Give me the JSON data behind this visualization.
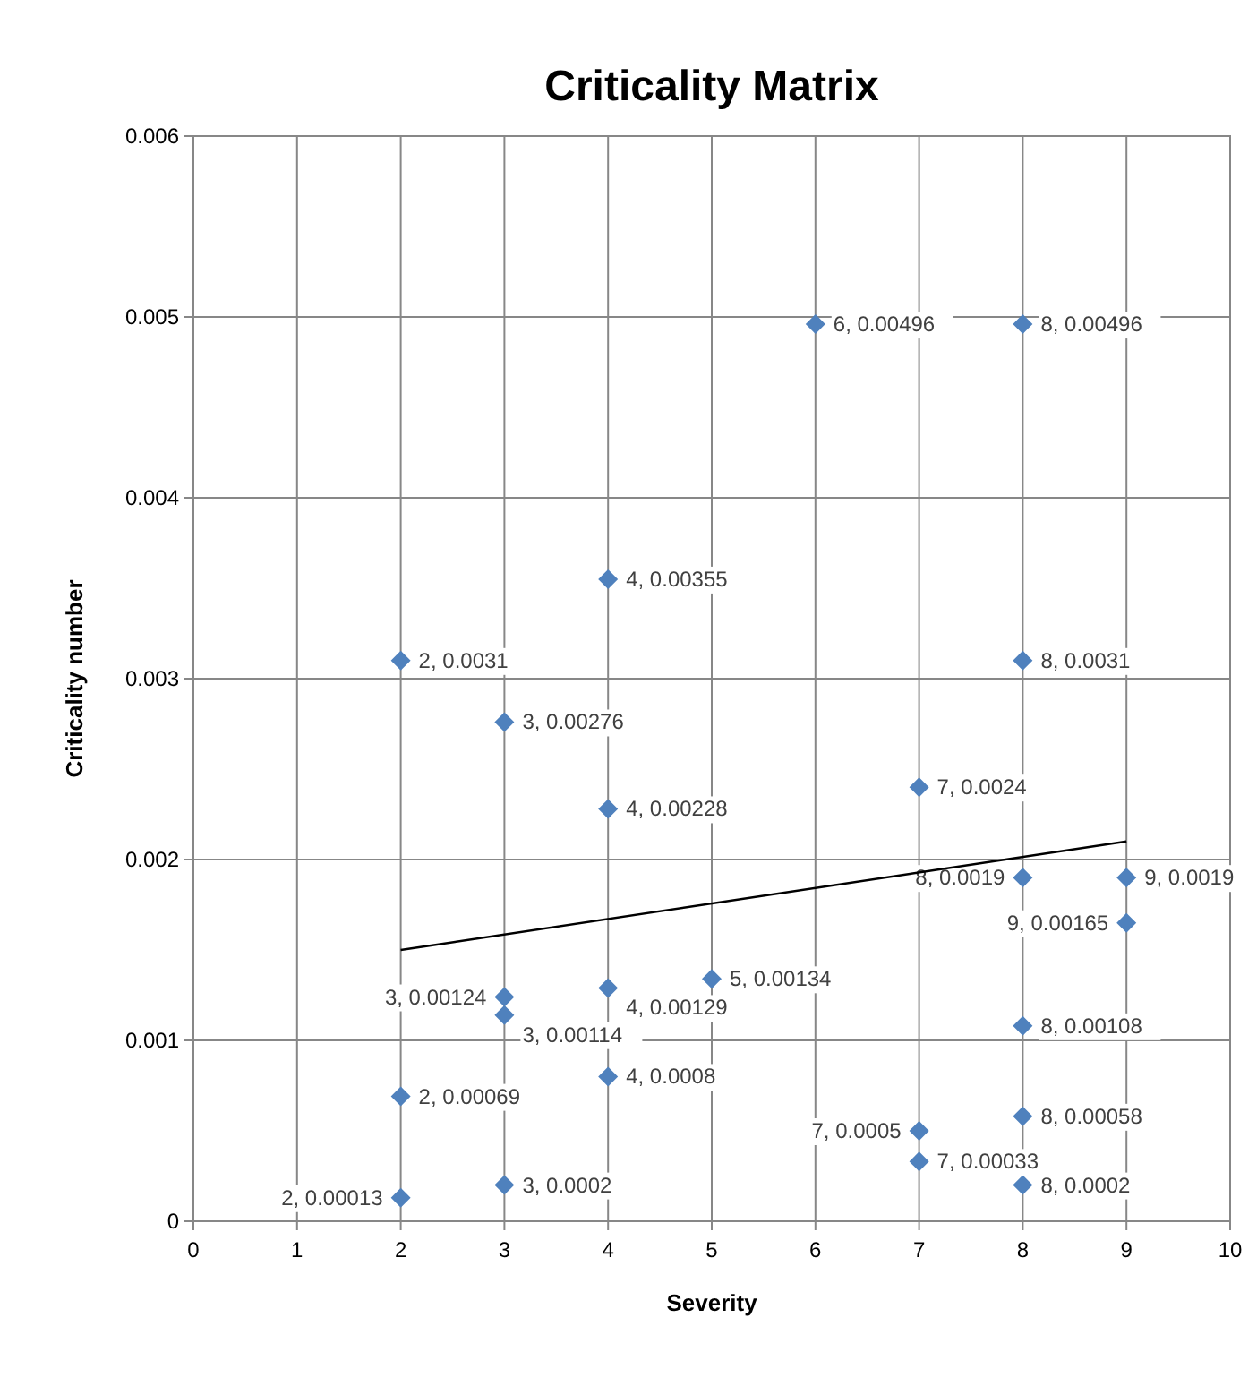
{
  "chart_data": {
    "type": "scatter",
    "title": "Criticality Matrix",
    "xlabel": "Severity",
    "ylabel": "Criticality number",
    "xlim": [
      0,
      10
    ],
    "xticks": [
      0,
      1,
      2,
      3,
      4,
      5,
      6,
      7,
      8,
      9,
      10
    ],
    "ylim": [
      0,
      0.006
    ],
    "yticks": [
      0,
      0.001,
      0.002,
      0.003,
      0.004,
      0.005,
      0.006
    ],
    "grid": true,
    "marker": "diamond",
    "series": [
      {
        "color": "#4f81bd",
        "x": [
          6,
          8,
          4,
          2,
          8,
          3,
          4,
          7,
          8,
          9,
          9,
          5,
          4,
          3,
          3,
          8,
          4,
          2,
          8,
          7,
          7,
          8,
          3,
          2
        ],
        "values": [
          0.00496,
          0.00496,
          0.00355,
          0.0031,
          0.0031,
          0.00276,
          0.00228,
          0.0024,
          0.0019,
          0.0019,
          0.00165,
          0.00134,
          0.00129,
          0.00124,
          0.00114,
          0.00108,
          0.0008,
          0.00069,
          0.00058,
          0.0005,
          0.00033,
          0.0002,
          0.0002,
          0.00013
        ],
        "value_labels": [
          "6, 0.00496",
          "8, 0.00496",
          "4, 0.00355",
          "2, 0.0031",
          "8, 0.0031",
          "3, 0.00276",
          "4, 0.00228",
          "7, 0.0024",
          "8, 0.0019",
          "9, 0.0019",
          "9, 0.00165",
          "5, 0.00134",
          "4, 0.00129",
          "3, 0.00124",
          "3, 0.00114",
          "8, 0.00108",
          "4, 0.0008",
          "2, 0.00069",
          "8, 0.00058",
          "7, 0.0005",
          "7, 0.00033",
          "8, 0.0002",
          "3, 0.0002",
          "2, 0.00013"
        ]
      },
      {
        "type": "line",
        "color": "#000000",
        "x": [
          2,
          9
        ],
        "values": [
          0.0015,
          0.0021
        ],
        "marker": "none",
        "line_style": "solid"
      }
    ]
  }
}
